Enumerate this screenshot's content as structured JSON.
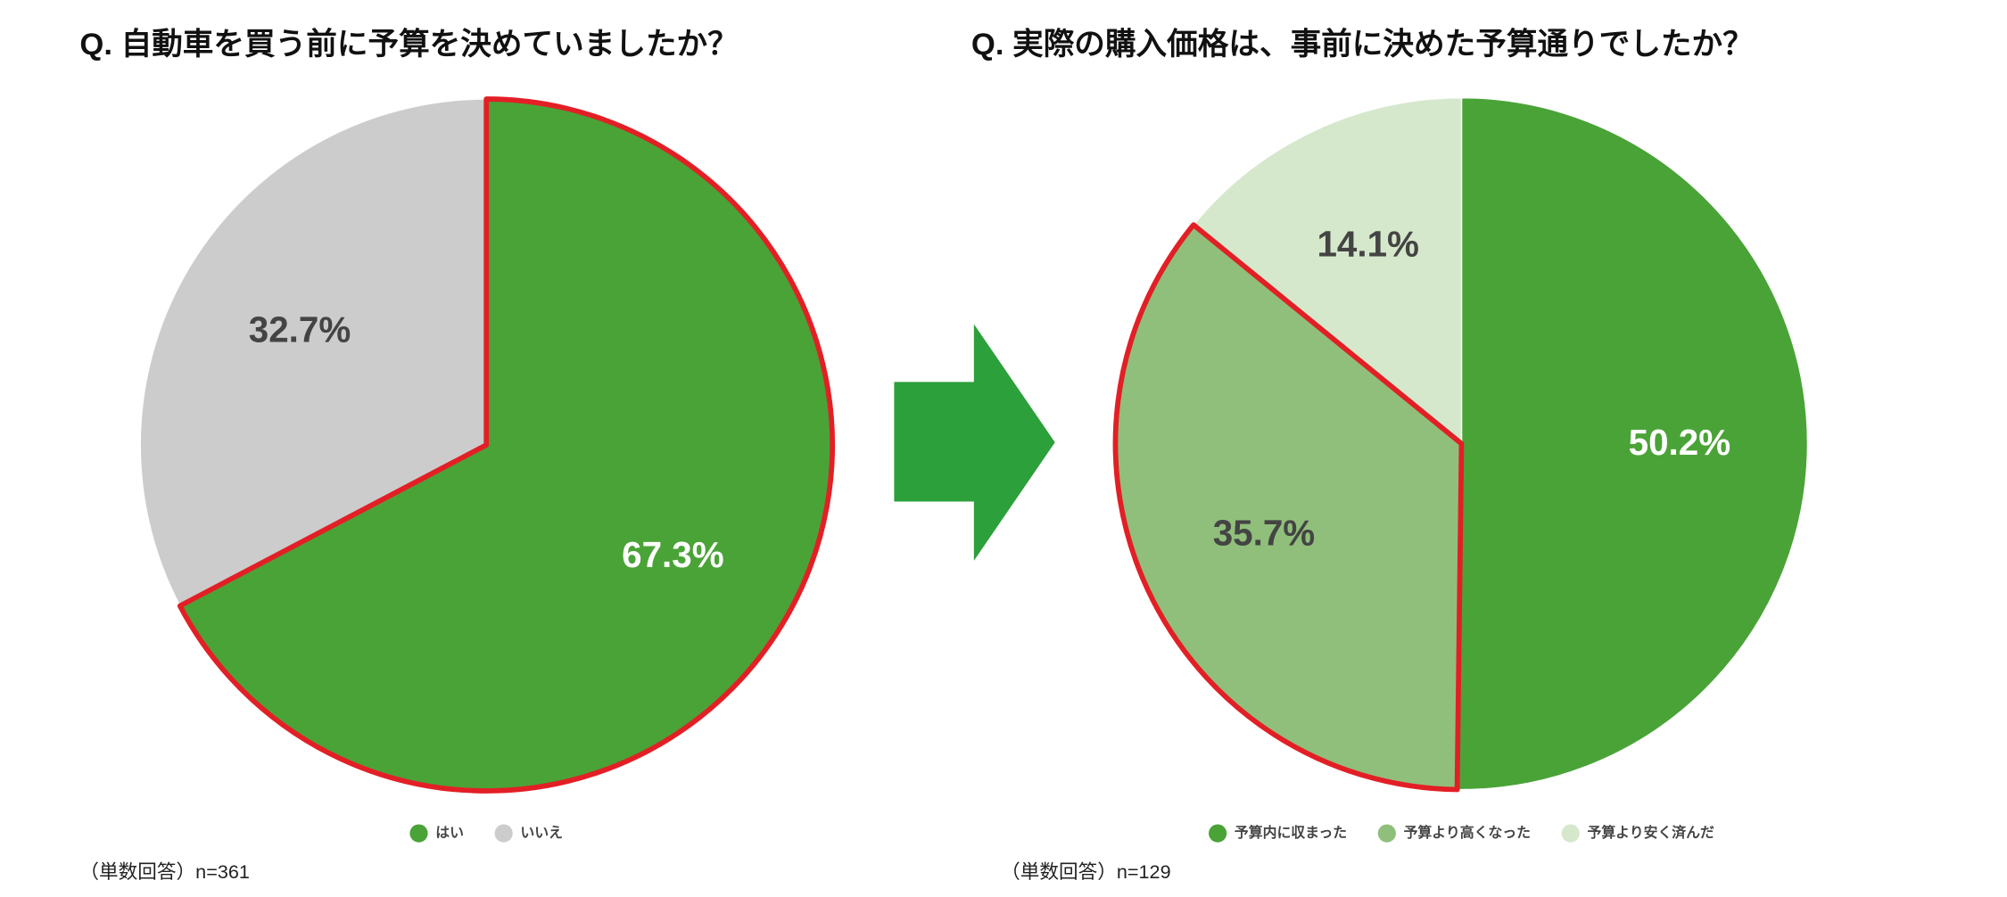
{
  "chart_data": [
    {
      "type": "pie",
      "title": "Q. 自動車を買う前に予算を決めていましたか？",
      "categories": [
        "はい",
        "いいえ"
      ],
      "values": [
        67.3,
        32.7
      ],
      "value_labels": [
        "67.3%",
        "32.7%"
      ],
      "colors": [
        "#4aa337",
        "#cccccc"
      ],
      "outlined": [
        true,
        false
      ],
      "outline_color": "#e31f26",
      "note": "（単数回答）n=361",
      "legend": "bottom"
    },
    {
      "type": "pie",
      "title": "Q. 実際の購入価格は、事前に決めた予算通りでしたか？",
      "categories": [
        "予算内に収まった",
        "予算より高くなった",
        "予算より安く済んだ"
      ],
      "values": [
        50.2,
        35.7,
        14.1
      ],
      "value_labels": [
        "50.2%",
        "35.7%",
        "14.1%"
      ],
      "colors": [
        "#4aa337",
        "#90bf7b",
        "#d5e8cc"
      ],
      "outlined": [
        false,
        true,
        false
      ],
      "outline_color": "#e31f26",
      "note": "（単数回答）n=129",
      "legend": "bottom"
    }
  ]
}
